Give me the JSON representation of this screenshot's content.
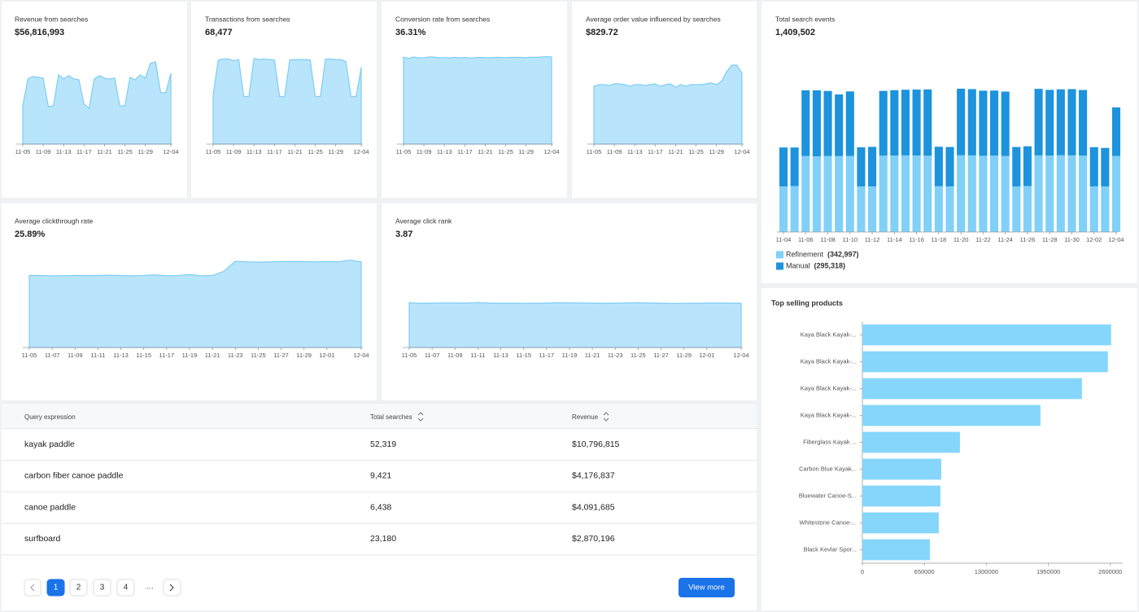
{
  "chart_data": [
    {
      "type": "area",
      "title": "Revenue from searches",
      "subtitle": "$56,816,993",
      "categories": [
        "11-05",
        null,
        null,
        null,
        "11-09",
        null,
        null,
        null,
        "11-13",
        null,
        null,
        null,
        "11-17",
        null,
        null,
        null,
        "11-21",
        null,
        null,
        null,
        "11-25",
        null,
        null,
        null,
        "11-29",
        null,
        null,
        null,
        null,
        "12-04"
      ],
      "values": [
        1205000,
        2051000,
        2128000,
        2103000,
        2077000,
        1179000,
        1205000,
        2179000,
        2051000,
        2154000,
        2051000,
        2026000,
        1256000,
        1128000,
        2051000,
        2154000,
        2077000,
        2051000,
        2077000,
        1205000,
        1205000,
        2103000,
        2026000,
        2179000,
        2077000,
        2538000,
        2590000,
        1615000,
        1615000,
        2231000
      ],
      "ylim": [
        0,
        3000000
      ],
      "color": "#b8e5fb"
    },
    {
      "type": "area",
      "title": "Transactions from searches",
      "subtitle": "68,477",
      "categories": [
        "11-05",
        null,
        null,
        null,
        "11-09",
        null,
        null,
        null,
        "11-13",
        null,
        null,
        null,
        "11-17",
        null,
        null,
        null,
        "11-21",
        null,
        null,
        null,
        "11-25",
        null,
        null,
        null,
        "11-29",
        null,
        null,
        null,
        null,
        "12-04"
      ],
      "values": [
        1550,
        2650,
        2680,
        2680,
        2620,
        2660,
        1500,
        1500,
        2700,
        2660,
        2680,
        2660,
        2650,
        1500,
        1500,
        2650,
        2660,
        2660,
        2660,
        2650,
        1500,
        1500,
        2680,
        2680,
        2660,
        2660,
        2600,
        1500,
        1500,
        2420
      ],
      "ylim": [
        0,
        3000
      ],
      "color": "#b8e5fb"
    },
    {
      "type": "area",
      "title": "Conversion rate from searches",
      "subtitle": "36.31%",
      "categories": [
        "11-05",
        null,
        null,
        null,
        "11-09",
        null,
        null,
        null,
        "11-13",
        null,
        null,
        null,
        "11-17",
        null,
        null,
        null,
        "11-21",
        null,
        null,
        null,
        "11-25",
        null,
        null,
        null,
        "11-29",
        null,
        null,
        null,
        null,
        "12-04"
      ],
      "values": [
        36.5,
        36.0,
        36.6,
        36.2,
        36.3,
        36.6,
        36.5,
        36.3,
        36.3,
        36.2,
        36.4,
        36.2,
        36.4,
        36.1,
        36.3,
        36.4,
        36.3,
        36.3,
        36.4,
        36.4,
        36.3,
        36.4,
        36.4,
        36.4,
        36.3,
        36.5,
        36.4,
        36.6,
        36.7,
        36.6
      ],
      "ylim": [
        0,
        40
      ],
      "color": "#b8e5fb"
    },
    {
      "type": "area",
      "title": "Average order value influenced by searches",
      "subtitle": "$829.72",
      "categories": [
        "11-05",
        null,
        null,
        null,
        "11-09",
        null,
        null,
        null,
        "11-13",
        null,
        null,
        null,
        "11-17",
        null,
        null,
        null,
        "11-21",
        null,
        null,
        null,
        "11-25",
        null,
        null,
        null,
        "11-29",
        null,
        null,
        null,
        null,
        "12-04"
      ],
      "values": [
        789,
        811,
        811,
        800,
        822,
        822,
        811,
        789,
        811,
        811,
        800,
        811,
        822,
        789,
        811,
        822,
        778,
        811,
        789,
        811,
        811,
        811,
        822,
        833,
        811,
        856,
        989,
        1078,
        1078,
        967
      ],
      "ylim": [
        0,
        1300
      ],
      "color": "#b8e5fb"
    },
    {
      "type": "area",
      "title": "Average clickthrough rate",
      "subtitle": "25.89%",
      "categories": [
        "11-05",
        null,
        "11-07",
        null,
        "11-09",
        null,
        "11-11",
        null,
        "11-13",
        null,
        "11-15",
        null,
        "11-17",
        null,
        "11-19",
        null,
        "11-21",
        null,
        "11-23",
        null,
        "11-25",
        null,
        "11-27",
        null,
        "11-29",
        null,
        "12-01",
        null,
        null,
        "12-04"
      ],
      "values": [
        24.4,
        24.4,
        24.3,
        24.3,
        24.4,
        24.4,
        24.4,
        24.5,
        24.4,
        24.3,
        24.4,
        24.6,
        24.3,
        24.4,
        24.7,
        24.3,
        24.4,
        25.8,
        29.2,
        29.0,
        28.9,
        29.0,
        29.1,
        29.1,
        29.1,
        29.0,
        29.1,
        29.0,
        29.6,
        29.0
      ],
      "ylim": [
        0,
        35
      ],
      "color": "#b8e5fb"
    },
    {
      "type": "area",
      "title": "Average click rank",
      "subtitle": "3.87",
      "categories": [
        "11-05",
        null,
        "11-07",
        null,
        "11-09",
        null,
        "11-11",
        null,
        "11-13",
        null,
        "11-15",
        null,
        "11-17",
        null,
        "11-19",
        null,
        "11-21",
        null,
        "11-23",
        null,
        "11-25",
        null,
        "11-27",
        null,
        "11-29",
        null,
        "12-01",
        null,
        null,
        "12-04"
      ],
      "values": [
        3.9,
        3.86,
        3.87,
        3.88,
        3.88,
        3.87,
        3.92,
        3.87,
        3.86,
        3.86,
        3.85,
        3.86,
        3.87,
        3.9,
        3.89,
        3.88,
        3.87,
        3.86,
        3.87,
        3.88,
        3.9,
        3.88,
        3.86,
        3.85,
        3.85,
        3.86,
        3.87,
        3.87,
        3.87,
        3.86
      ],
      "ylim": [
        0,
        9
      ],
      "color": "#b8e5fb"
    },
    {
      "type": "bar",
      "stacked": true,
      "title": "Total search events",
      "subtitle": "1,409,502",
      "categories": [
        "11-04",
        null,
        "11-06",
        null,
        "11-08",
        null,
        "11-10",
        null,
        "11-12",
        null,
        "11-14",
        null,
        "11-16",
        null,
        "11-18",
        null,
        "11-20",
        null,
        "11-22",
        null,
        "11-24",
        null,
        "11-26",
        null,
        "11-28",
        null,
        "11-30",
        null,
        "12-02",
        null,
        "12-04"
      ],
      "series": [
        {
          "name": "Refinement",
          "total_label": "(342,997)",
          "color": "#80d0f8",
          "values": [
            7500,
            7550,
            12500,
            12450,
            12500,
            12480,
            12520,
            7480,
            7500,
            12560,
            12580,
            12600,
            12580,
            12550,
            7520,
            7500,
            12620,
            12600,
            12540,
            12560,
            12500,
            7480,
            7550,
            12600,
            12580,
            12620,
            12600,
            12560,
            7500,
            7480,
            12500
          ]
        },
        {
          "name": "Manual",
          "total_label": "(295,318)",
          "color": "#1c93dc",
          "values": [
            6400,
            6350,
            10800,
            10850,
            10700,
            10150,
            10600,
            6450,
            6500,
            10650,
            10750,
            10800,
            10850,
            10900,
            6500,
            6480,
            10950,
            10900,
            10700,
            10700,
            10600,
            6500,
            6550,
            10950,
            10800,
            10850,
            10900,
            10800,
            6450,
            6350,
            8000
          ]
        }
      ]
    },
    {
      "type": "bar",
      "orientation": "horizontal",
      "title": "Top selling products",
      "categories": [
        "Kaya Black Kayak-...",
        "Kaya Black Kayak-...",
        "Kaya Black Kayak-...",
        "Kaya Black Kayak-...",
        "Fiberglass Kayak ...",
        "Carbon Blue Kayak...",
        "Bluewater Canoe-S...",
        "Whitestone Canoe-...",
        "Black Kevlar Spor..."
      ],
      "values": [
        2608000,
        2574000,
        2302000,
        1867000,
        1023000,
        827000,
        818000,
        801000,
        708000
      ],
      "xlim": [
        0,
        2730000
      ],
      "xticks": [
        0,
        650000,
        1300000,
        1950000,
        2600000
      ],
      "color": "#86d6fb"
    }
  ],
  "table": {
    "columns": [
      "Query expression",
      "Total searches",
      "Revenue"
    ],
    "rows": [
      [
        "kayak paddle",
        "52,319",
        "$10,796,815"
      ],
      [
        "carbon fiber canoe paddle",
        "9,421",
        "$4,176,837"
      ],
      [
        "canoe paddle",
        "6,438",
        "$4,091,685"
      ],
      [
        "surfboard",
        "23,180",
        "$2,870,196"
      ]
    ]
  },
  "pagination": {
    "pages": [
      "1",
      "2",
      "3",
      "4"
    ],
    "more": "…",
    "button": "View more"
  }
}
